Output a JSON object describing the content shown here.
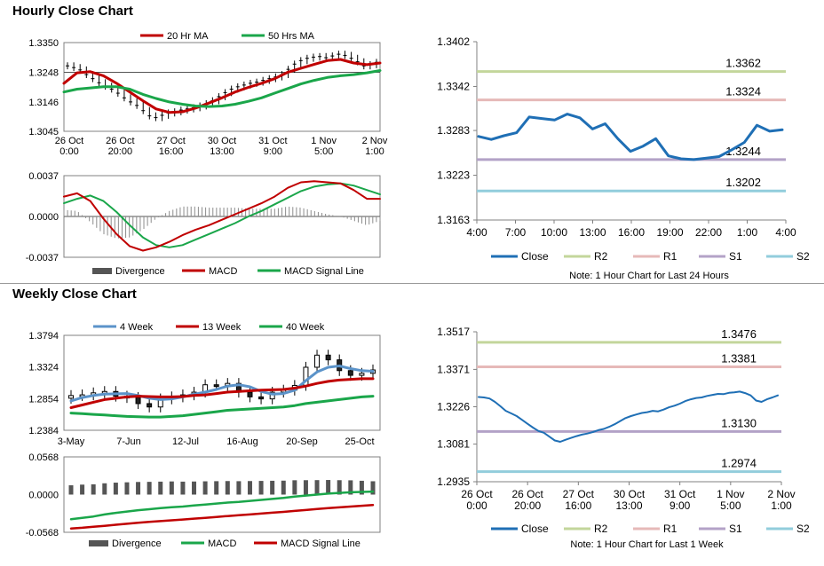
{
  "sections": {
    "hourly_title": "Hourly Close Chart",
    "weekly_title": "Weekly Close Chart"
  },
  "colors": {
    "red": "#c00000",
    "green": "#1aa64a",
    "blue": "#1f6fb5",
    "light_blue": "#5b93c9",
    "r2": "#c3d69b",
    "r1": "#e6b9b8",
    "s1": "#b3a2c7",
    "s2": "#92cddc",
    "grey_bar": "#8c8c8c",
    "dark_bar": "#555555"
  },
  "chart_data": [
    {
      "id": "hourly-price",
      "type": "line",
      "ylim": [
        1.3045,
        1.335
      ],
      "yticks": [
        "1.3350",
        "1.3248",
        "1.3146",
        "1.3045"
      ],
      "xticks": [
        "26 Oct\n0:00",
        "26 Oct\n20:00",
        "27 Oct\n16:00",
        "30 Oct\n13:00",
        "31 Oct\n9:00",
        "1 Nov\n5:00",
        "2 Nov\n1:00"
      ],
      "series": [
        {
          "name": "20 Hr MA",
          "x": [
            0,
            4,
            8,
            12,
            16,
            20,
            24,
            28,
            32,
            36,
            40,
            44,
            48,
            52,
            56,
            60,
            64,
            68,
            72,
            76,
            80,
            84,
            88,
            92,
            96
          ],
          "values": [
            1.321,
            1.3246,
            1.325,
            1.3236,
            1.321,
            1.318,
            1.315,
            1.3122,
            1.311,
            1.3112,
            1.3125,
            1.3142,
            1.316,
            1.318,
            1.3196,
            1.321,
            1.3226,
            1.3248,
            1.3262,
            1.3275,
            1.3288,
            1.3292,
            1.328,
            1.3274,
            1.328
          ]
        },
        {
          "name": "50 Hrs MA",
          "x": [
            0,
            4,
            8,
            12,
            16,
            20,
            24,
            28,
            32,
            36,
            40,
            44,
            48,
            52,
            56,
            60,
            64,
            68,
            72,
            76,
            80,
            84,
            88,
            92,
            96
          ],
          "values": [
            1.318,
            1.319,
            1.3194,
            1.3198,
            1.3198,
            1.319,
            1.3172,
            1.3158,
            1.3146,
            1.3138,
            1.3132,
            1.313,
            1.3132,
            1.3138,
            1.3148,
            1.316,
            1.3176,
            1.3192,
            1.3208,
            1.322,
            1.323,
            1.3236,
            1.324,
            1.3246,
            1.3254
          ]
        }
      ],
      "close": [
        1.327,
        1.3264,
        1.3256,
        1.324,
        1.3226,
        1.3212,
        1.32,
        1.319,
        1.3176,
        1.316,
        1.3146,
        1.3134,
        1.3116,
        1.3098,
        1.3092,
        1.31,
        1.3108,
        1.3112,
        1.3118,
        1.3122,
        1.3126,
        1.3132,
        1.314,
        1.315,
        1.3164,
        1.3178,
        1.319,
        1.3198,
        1.3204,
        1.321,
        1.3214,
        1.322,
        1.3226,
        1.3232,
        1.324,
        1.3258,
        1.3276,
        1.3288,
        1.3296,
        1.33,
        1.3302,
        1.3298,
        1.3304,
        1.331,
        1.3306,
        1.3296,
        1.3284,
        1.327,
        1.3274,
        1.3282
      ]
    },
    {
      "id": "hourly-macd",
      "type": "line",
      "ylim": [
        -0.0037,
        0.0037
      ],
      "yticks": [
        "0.0037",
        "0.0000",
        "-0.0037"
      ],
      "legend": [
        "Divergence",
        "MACD",
        "MACD Signal Line"
      ],
      "x": [
        0,
        4,
        8,
        12,
        16,
        20,
        24,
        28,
        32,
        36,
        40,
        44,
        48,
        52,
        56,
        60,
        64,
        68,
        72,
        76,
        80,
        84,
        88,
        92,
        96
      ],
      "macd": [
        0.0018,
        0.0021,
        0.0014,
        -0.0002,
        -0.0016,
        -0.0027,
        -0.0031,
        -0.0028,
        -0.0023,
        -0.0017,
        -0.0012,
        -0.0008,
        -0.0003,
        0.0002,
        0.0007,
        0.0012,
        0.0018,
        0.0026,
        0.0031,
        0.0032,
        0.0031,
        0.003,
        0.0024,
        0.0016,
        0.0016
      ],
      "signal": [
        0.0012,
        0.0016,
        0.0019,
        0.0014,
        0.0004,
        -0.0008,
        -0.0019,
        -0.0026,
        -0.0028,
        -0.0026,
        -0.0021,
        -0.0016,
        -0.0011,
        -0.0006,
        0.0,
        0.0005,
        0.0011,
        0.0017,
        0.0023,
        0.0027,
        0.0029,
        0.003,
        0.0028,
        0.0024,
        0.002
      ],
      "divergence": [
        0.0006,
        0.0005,
        -0.0005,
        -0.0016,
        -0.002,
        -0.0019,
        -0.0012,
        -0.0002,
        0.0005,
        0.0009,
        0.0009,
        0.0008,
        0.0008,
        0.0008,
        0.0007,
        0.0007,
        0.0007,
        0.0009,
        0.0008,
        0.0005,
        0.0002,
        0.0,
        -0.0004,
        -0.0008,
        -0.0004
      ]
    },
    {
      "id": "hourly-pivot",
      "type": "line",
      "ylim": [
        1.3163,
        1.3402
      ],
      "yticks": [
        "1.3402",
        "1.3342",
        "1.3283",
        "1.3223",
        "1.3163"
      ],
      "xticks": [
        "4:00",
        "7:00",
        "10:00",
        "13:00",
        "16:00",
        "19:00",
        "22:00",
        "1:00",
        "4:00"
      ],
      "levels": {
        "R2": 1.3362,
        "R1": 1.3324,
        "S1": 1.3244,
        "S2": 1.3202
      },
      "level_labels": {
        "R2": "1.3362",
        "R1": "1.3324",
        "S1": "1.3244",
        "S2": "1.3202"
      },
      "close": [
        1.3275,
        1.3271,
        1.3276,
        1.328,
        1.3301,
        1.3299,
        1.3297,
        1.3305,
        1.33,
        1.3285,
        1.3292,
        1.3272,
        1.3255,
        1.3262,
        1.3272,
        1.3249,
        1.3245,
        1.3244,
        1.3246,
        1.3248,
        1.3257,
        1.3267,
        1.329,
        1.3282,
        1.3284
      ],
      "legend": [
        "Close",
        "R2",
        "R1",
        "S1",
        "S2"
      ],
      "note": "Note: 1 Hour Chart for Last 24 Hours"
    },
    {
      "id": "weekly-price",
      "type": "line",
      "ylim": [
        1.2384,
        1.3794
      ],
      "yticks": [
        "1.3794",
        "1.3324",
        "1.2854",
        "1.2384"
      ],
      "xticks": [
        "3-May",
        "7-Jun",
        "12-Jul",
        "16-Aug",
        "20-Sep",
        "25-Oct"
      ],
      "series": [
        {
          "name": "4 Week",
          "values": [
            1.282,
            1.287,
            1.29,
            1.292,
            1.2925,
            1.293,
            1.29,
            1.286,
            1.284,
            1.285,
            1.288,
            1.292,
            1.295,
            1.299,
            1.304,
            1.306,
            1.303,
            1.296,
            1.292,
            1.293,
            1.298,
            1.312,
            1.325,
            1.332,
            1.334,
            1.33,
            1.327,
            1.326
          ]
        },
        {
          "name": "13 Week",
          "values": [
            1.272,
            1.276,
            1.28,
            1.284,
            1.286,
            1.288,
            1.289,
            1.2885,
            1.288,
            1.288,
            1.2885,
            1.29,
            1.291,
            1.293,
            1.295,
            1.296,
            1.297,
            1.298,
            1.2985,
            1.299,
            1.301,
            1.304,
            1.308,
            1.311,
            1.313,
            1.314,
            1.315,
            1.315
          ]
        },
        {
          "name": "40 Week",
          "values": [
            1.264,
            1.263,
            1.262,
            1.261,
            1.26,
            1.259,
            1.2585,
            1.258,
            1.258,
            1.259,
            1.26,
            1.262,
            1.264,
            1.266,
            1.268,
            1.269,
            1.27,
            1.271,
            1.272,
            1.273,
            1.275,
            1.278,
            1.28,
            1.282,
            1.284,
            1.286,
            1.288,
            1.289
          ]
        }
      ],
      "close": [
        1.29,
        1.291,
        1.294,
        1.296,
        1.289,
        1.287,
        1.278,
        1.273,
        1.285,
        1.288,
        1.291,
        1.295,
        1.306,
        1.305,
        1.308,
        1.295,
        1.288,
        1.285,
        1.295,
        1.298,
        1.305,
        1.332,
        1.35,
        1.343,
        1.327,
        1.32,
        1.323,
        1.328
      ]
    },
    {
      "id": "weekly-macd",
      "type": "line",
      "ylim": [
        -0.0568,
        0.0568
      ],
      "yticks": [
        "0.0568",
        "0.0000",
        "-0.0568"
      ],
      "legend": [
        "Divergence",
        "MACD",
        "MACD Signal Line"
      ],
      "macd": [
        -0.037,
        -0.035,
        -0.033,
        -0.03,
        -0.0275,
        -0.0255,
        -0.0235,
        -0.022,
        -0.0205,
        -0.019,
        -0.018,
        -0.0165,
        -0.015,
        -0.0135,
        -0.012,
        -0.011,
        -0.0095,
        -0.008,
        -0.0065,
        -0.005,
        -0.003,
        -0.0015,
        0.0,
        0.0015,
        0.0025,
        0.0035,
        0.004,
        0.0045
      ],
      "signal": [
        -0.051,
        -0.05,
        -0.0485,
        -0.047,
        -0.0455,
        -0.044,
        -0.0425,
        -0.0412,
        -0.04,
        -0.0388,
        -0.0375,
        -0.0362,
        -0.035,
        -0.0337,
        -0.0324,
        -0.0312,
        -0.0299,
        -0.0286,
        -0.0273,
        -0.026,
        -0.0246,
        -0.0232,
        -0.0218,
        -0.0205,
        -0.0192,
        -0.018,
        -0.0168,
        -0.0156
      ],
      "divergence": [
        0.014,
        0.015,
        0.0155,
        0.017,
        0.018,
        0.0185,
        0.019,
        0.0192,
        0.0195,
        0.0198,
        0.0195,
        0.0197,
        0.02,
        0.0202,
        0.0204,
        0.0202,
        0.0204,
        0.0206,
        0.0208,
        0.021,
        0.0216,
        0.0217,
        0.0218,
        0.022,
        0.0217,
        0.0215,
        0.0208,
        0.0201
      ]
    },
    {
      "id": "weekly-pivot",
      "type": "line",
      "ylim": [
        1.2935,
        1.3517
      ],
      "yticks": [
        "1.3517",
        "1.3371",
        "1.3226",
        "1.3081",
        "1.2935"
      ],
      "xticks": [
        "26 Oct\n0:00",
        "26 Oct\n20:00",
        "27 Oct\n16:00",
        "30 Oct\n13:00",
        "31 Oct\n9:00",
        "1 Nov\n5:00",
        "2 Nov\n1:00"
      ],
      "levels": {
        "R2": 1.3476,
        "R1": 1.3381,
        "S1": 1.313,
        "S2": 1.2974
      },
      "level_labels": {
        "R2": "1.3476",
        "R1": "1.3381",
        "S1": "1.3130",
        "S2": "1.2974"
      },
      "close": [
        1.3264,
        1.3262,
        1.3258,
        1.3245,
        1.3228,
        1.321,
        1.32,
        1.319,
        1.3175,
        1.316,
        1.3145,
        1.3132,
        1.3125,
        1.311,
        1.3095,
        1.309,
        1.3098,
        1.3105,
        1.3112,
        1.3118,
        1.3122,
        1.3128,
        1.3135,
        1.314,
        1.3148,
        1.3158,
        1.317,
        1.3182,
        1.319,
        1.3196,
        1.3202,
        1.3205,
        1.321,
        1.3208,
        1.3215,
        1.3224,
        1.323,
        1.3238,
        1.3248,
        1.3255,
        1.326,
        1.3262,
        1.3268,
        1.3272,
        1.3276,
        1.3275,
        1.328,
        1.3282,
        1.3285,
        1.3279,
        1.327,
        1.325,
        1.3245,
        1.3255,
        1.3262,
        1.327
      ],
      "legend": [
        "Close",
        "R2",
        "R1",
        "S1",
        "S2"
      ],
      "note": "Note: 1 Hour Chart for Last 1 Week"
    }
  ]
}
